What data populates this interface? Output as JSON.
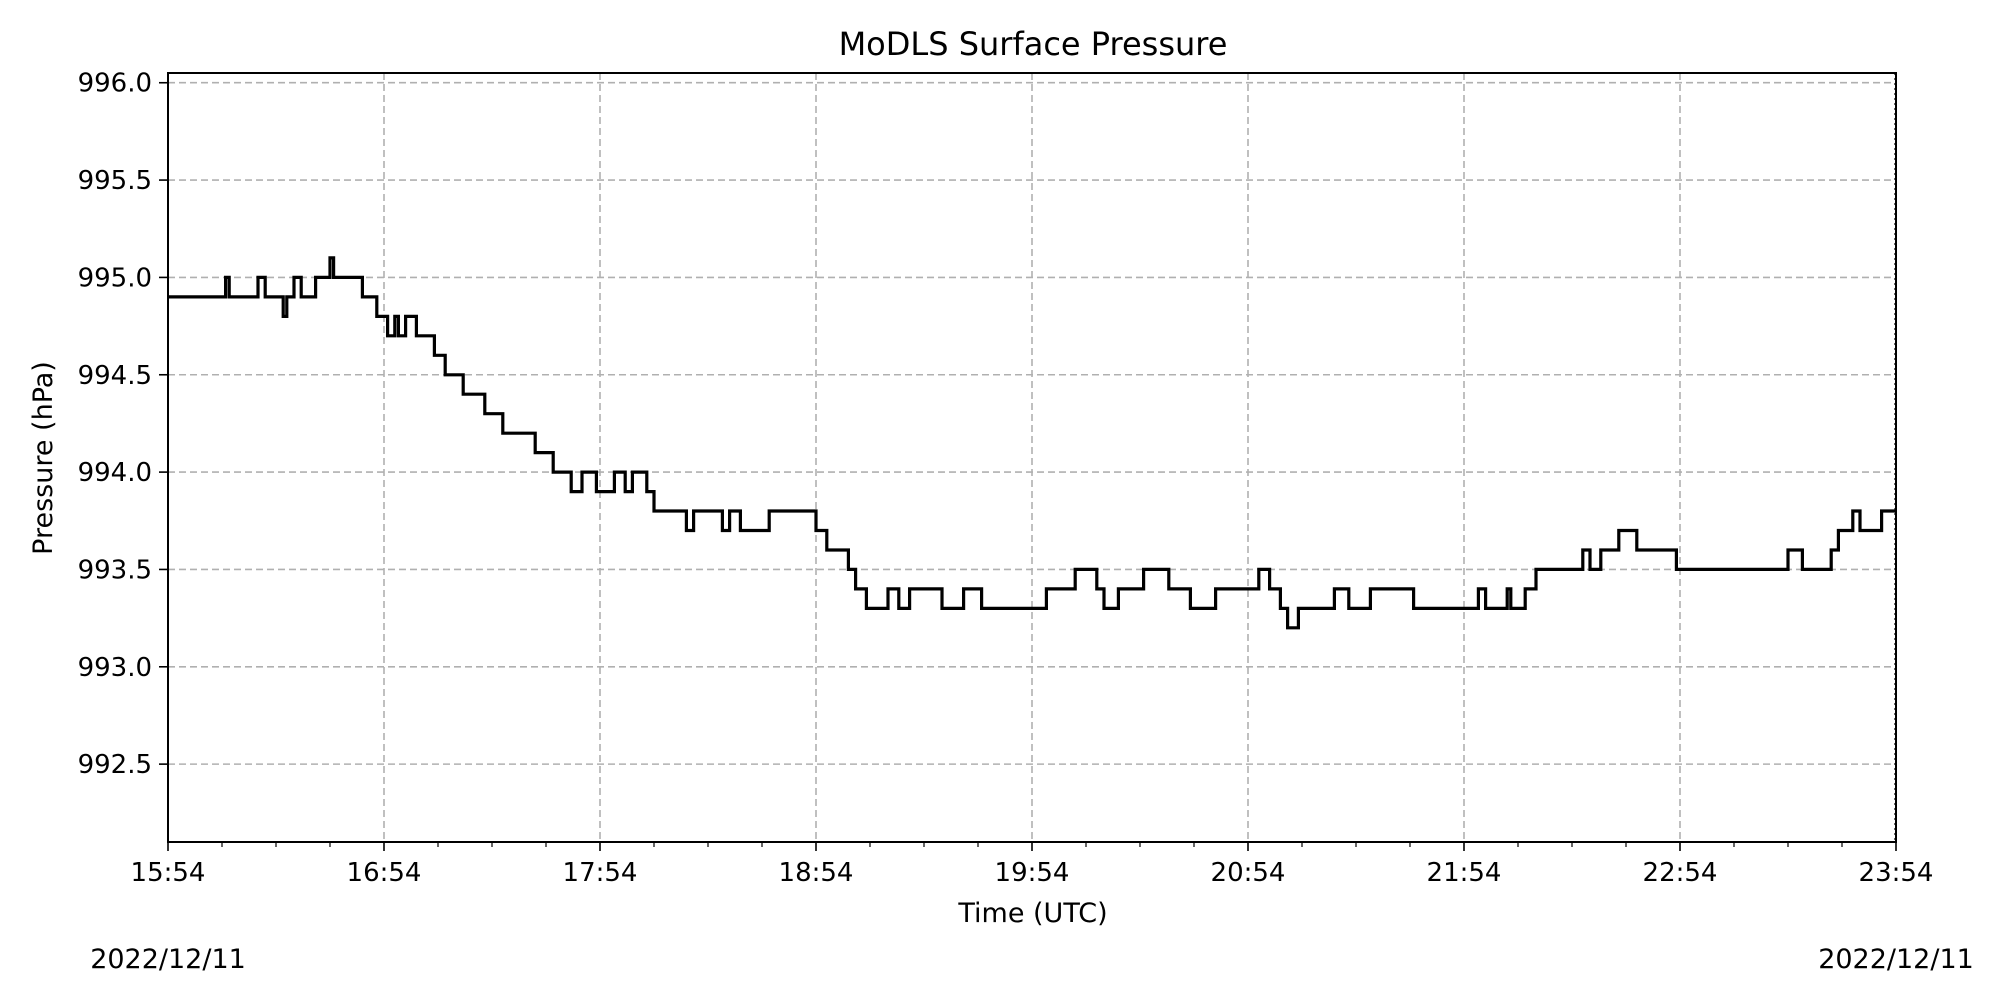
{
  "chart_data": {
    "type": "line",
    "title": "MoDLS Surface Pressure",
    "xlabel": "Time (UTC)",
    "ylabel": "Pressure (hPa)",
    "x_tick_labels": [
      "15:54",
      "16:54",
      "17:54",
      "18:54",
      "19:54",
      "20:54",
      "21:54",
      "22:54",
      "23:54"
    ],
    "y_tick_labels": [
      "992.5",
      "993.0",
      "993.5",
      "994.0",
      "994.5",
      "995.0",
      "995.5",
      "996.0"
    ],
    "y_ticks": [
      992.5,
      993.0,
      993.5,
      994.0,
      994.5,
      995.0,
      995.5,
      996.0
    ],
    "ylim": [
      992.1,
      996.05
    ],
    "xlim": [
      "15:54",
      "23:54"
    ],
    "date_left": "2022/12/11",
    "date_right": "2022/12/11",
    "grid": true,
    "series_color": "#000000",
    "series": [
      {
        "x": [
          "15:54",
          "16:10",
          "16:11",
          "16:19",
          "16:21",
          "16:22",
          "16:26",
          "16:27",
          "16:29",
          "16:31",
          "16:34",
          "16:35",
          "16:39",
          "16:40",
          "16:42",
          "16:48",
          "16:52",
          "16:55",
          "16:57",
          "16:58",
          "17:00",
          "17:03",
          "17:04",
          "17:08",
          "17:10",
          "17:11",
          "17:13",
          "17:16",
          "17:18",
          "17:22",
          "17:24",
          "17:27",
          "17:30",
          "17:36",
          "17:41",
          "17:45",
          "17:46",
          "17:49",
          "17:53",
          "17:54",
          "17:58",
          "18:01",
          "18:03",
          "18:07",
          "18:09",
          "18:12",
          "18:18",
          "18:20",
          "18:25",
          "18:28",
          "18:30",
          "18:33",
          "18:41",
          "18:48",
          "18:54",
          "18:57",
          "19:03",
          "19:05",
          "19:08",
          "19:14",
          "19:17",
          "19:20",
          "19:25",
          "19:29",
          "19:35",
          "19:40",
          "19:52",
          "19:58",
          "20:06",
          "20:08",
          "20:12",
          "20:14",
          "20:18",
          "20:25",
          "20:32",
          "20:38",
          "20:45",
          "20:52",
          "20:57",
          "21:00",
          "21:03",
          "21:05",
          "21:08",
          "21:12",
          "21:18",
          "21:22",
          "21:28",
          "21:40",
          "21:54",
          "21:58",
          "22:00",
          "22:06",
          "22:07",
          "22:11",
          "22:14",
          "22:24",
          "22:27",
          "22:29",
          "22:32",
          "22:37",
          "22:42",
          "22:49",
          "22:53",
          "23:00",
          "23:15",
          "23:24",
          "23:28",
          "23:36",
          "23:38",
          "23:42",
          "23:44",
          "23:50"
        ],
        "y": [
          994.9,
          995.0,
          994.9,
          995.0,
          994.9,
          994.9,
          994.8,
          994.9,
          995.0,
          994.9,
          994.9,
          995.0,
          995.1,
          995.0,
          995.0,
          994.9,
          994.8,
          994.7,
          994.8,
          994.7,
          994.8,
          994.7,
          994.7,
          994.6,
          994.6,
          994.5,
          994.5,
          994.4,
          994.4,
          994.3,
          994.3,
          994.2,
          994.2,
          994.1,
          994.0,
          994.0,
          993.9,
          994.0,
          993.9,
          993.9,
          994.0,
          993.9,
          994.0,
          993.9,
          993.8,
          993.8,
          993.7,
          993.8,
          993.8,
          993.7,
          993.8,
          993.7,
          993.8,
          993.8,
          993.7,
          993.6,
          993.5,
          993.4,
          993.3,
          993.4,
          993.3,
          993.4,
          993.4,
          993.3,
          993.4,
          993.3,
          993.3,
          993.4,
          993.5,
          993.5,
          993.4,
          993.3,
          993.4,
          993.5,
          993.4,
          993.3,
          993.4,
          993.4,
          993.5,
          993.4,
          993.3,
          993.2,
          993.3,
          993.3,
          993.4,
          993.3,
          993.4,
          993.3,
          993.3,
          993.4,
          993.3,
          993.4,
          993.3,
          993.4,
          993.5,
          993.5,
          993.6,
          993.5,
          993.6,
          993.7,
          993.6,
          993.6,
          993.5,
          993.5,
          993.5,
          993.6,
          993.5,
          993.6,
          993.7,
          993.8,
          993.7,
          993.8
        ]
      }
    ]
  }
}
